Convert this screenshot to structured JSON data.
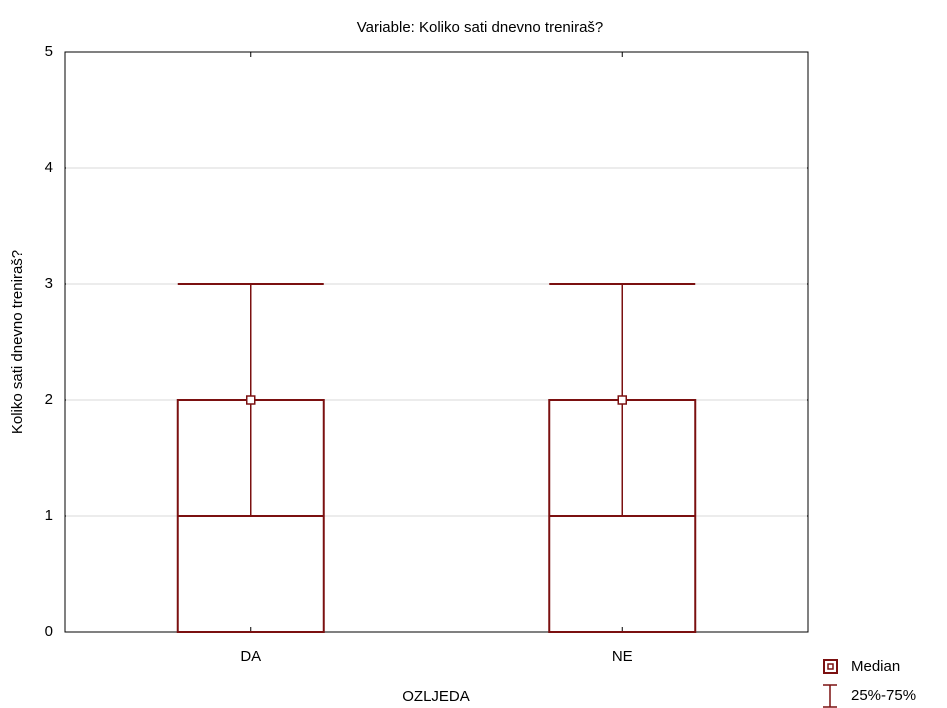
{
  "chart_data": {
    "type": "box",
    "title": "Variable: Koliko sati dnevno treniraš?",
    "x_label": "OZLJEDA",
    "y_label": "Koliko sati dnevno treniraš?",
    "categories": [
      "DA",
      "NE"
    ],
    "median": [
      2,
      2
    ],
    "whisker_low": [
      1,
      1
    ],
    "whisker_high": [
      3,
      3
    ],
    "box_low": [
      0,
      0
    ],
    "box_high": [
      2,
      2
    ],
    "color": "#7b1010",
    "ylim": [
      0,
      5
    ],
    "yticks": [
      0,
      1,
      2,
      3,
      4,
      5
    ],
    "grid": true,
    "legend": {
      "median": "Median",
      "range": "25%-75%"
    }
  }
}
